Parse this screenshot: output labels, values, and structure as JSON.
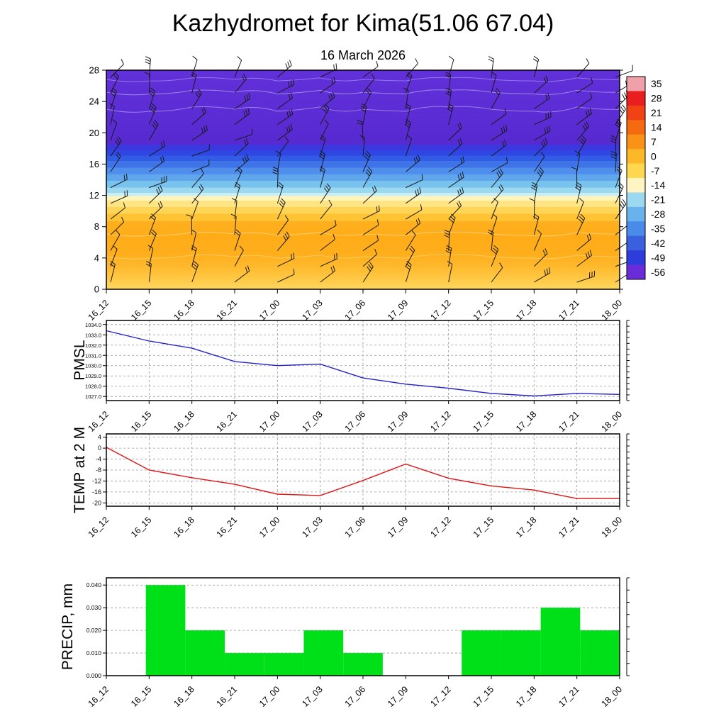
{
  "page": {
    "title": "Kazhydromet for Kima(51.06 67.04)",
    "subtitle": "16 March 2026"
  },
  "time_labels": [
    "16_12",
    "16_15",
    "16_18",
    "16_21",
    "17_00",
    "17_03",
    "17_06",
    "17_09",
    "17_12",
    "17_15",
    "17_18",
    "17_21",
    "18_00"
  ],
  "chart_data": [
    {
      "id": "upper_air",
      "type": "heatmap",
      "title": "",
      "description": "Vertical cross-section of temperature (shaded) with wind barbs at each 3-hour step; height index 0-28 on y-axis",
      "x": [
        "16_12",
        "16_15",
        "16_18",
        "16_21",
        "17_00",
        "17_03",
        "17_06",
        "17_09",
        "17_12",
        "17_15",
        "17_18",
        "17_21",
        "18_00"
      ],
      "ylim": [
        0,
        28
      ],
      "yticks": [
        0,
        4,
        8,
        12,
        16,
        20,
        24,
        28
      ],
      "colorbar_ticks": [
        "35",
        "28",
        "21",
        "14",
        "7",
        "0",
        "-7",
        "-14",
        "-21",
        "-28",
        "-35",
        "-42",
        "-49",
        "-56"
      ],
      "colorbar_colors": [
        "#f0a0a8",
        "#e81e20",
        "#f04214",
        "#f56a0e",
        "#fa9218",
        "#fcb826",
        "#ffd850",
        "#fff4c2",
        "#9cd8f0",
        "#6ab2ec",
        "#4a8ae8",
        "#3a60e0",
        "#2e3cdc",
        "#6a2cd8"
      ],
      "bands_note": "purple above level 18 (coldest ~ -56), banded blue/cyan levels 12-18, pale yellow ~11, yellow-orange below 11 (warmest ~0 near levels 5-9)",
      "gradient": [
        [
          0,
          "#6130d8"
        ],
        [
          20,
          "#5c2cd4"
        ],
        [
          34,
          "#562ad0"
        ],
        [
          34,
          "#3c38e0"
        ],
        [
          36.5,
          "#3c38e0"
        ],
        [
          36.5,
          "#2f46e3"
        ],
        [
          39,
          "#2f46e3"
        ],
        [
          39,
          "#335ce6"
        ],
        [
          41.5,
          "#335ce6"
        ],
        [
          41.5,
          "#3f74e9"
        ],
        [
          44.5,
          "#3f74e9"
        ],
        [
          44.5,
          "#4f8eec"
        ],
        [
          47.5,
          "#4f8eec"
        ],
        [
          47.5,
          "#60a6ec"
        ],
        [
          50.5,
          "#60a6ec"
        ],
        [
          50.5,
          "#78c2ee"
        ],
        [
          53.5,
          "#78c2ee"
        ],
        [
          53.5,
          "#9cd8f0"
        ],
        [
          56,
          "#9cd8f0"
        ],
        [
          56,
          "#c8eef6"
        ],
        [
          57.5,
          "#c8eef6"
        ],
        [
          57.5,
          "#fff4ba"
        ],
        [
          59.5,
          "#fff4ba"
        ],
        [
          59.5,
          "#ffe484"
        ],
        [
          62.5,
          "#ffe484"
        ],
        [
          62.5,
          "#ffd557"
        ],
        [
          65.5,
          "#ffd557"
        ],
        [
          65.5,
          "#ffc334"
        ],
        [
          69,
          "#ffc334"
        ],
        [
          69,
          "#ffb01f"
        ],
        [
          76,
          "#ffac18"
        ],
        [
          84,
          "#ffae1c"
        ],
        [
          90,
          "#ffba2e"
        ],
        [
          95,
          "#ffc844"
        ],
        [
          100,
          "#ffd65e"
        ]
      ],
      "wind_barbs": {
        "columns": 13,
        "rows": 14,
        "color": "#1a1a1a",
        "note": "mostly west-southwesterly barbs"
      }
    },
    {
      "id": "pmsl",
      "type": "line",
      "title": "PMSL",
      "color": "#2222cc",
      "x": [
        "16_12",
        "16_15",
        "16_18",
        "16_21",
        "17_00",
        "17_03",
        "17_06",
        "17_09",
        "17_12",
        "17_15",
        "17_18",
        "17_21",
        "18_00"
      ],
      "values": [
        1033.4,
        1032.4,
        1031.7,
        1030.4,
        1030.0,
        1030.15,
        1028.8,
        1028.2,
        1027.8,
        1027.3,
        1027.05,
        1027.3,
        1027.2
      ],
      "ylim": [
        1026.6,
        1034.4
      ],
      "yticks": [
        1034,
        1033,
        1032,
        1031,
        1030,
        1029,
        1028,
        1027
      ],
      "ytick_labels": [
        "1034.0",
        "1033.0",
        "1032.0",
        "1031.0",
        "1030.0",
        "1029.0",
        "1028.0",
        "1027.0"
      ],
      "grid": "dashed horizontal and vertical"
    },
    {
      "id": "temp2m",
      "type": "line",
      "title": "TEMP at 2 M",
      "color": "#dd1515",
      "x": [
        "16_12",
        "16_15",
        "16_18",
        "16_21",
        "17_00",
        "17_03",
        "17_06",
        "17_09",
        "17_12",
        "17_15",
        "17_18",
        "17_21",
        "18_00"
      ],
      "values": [
        0.3,
        -8.0,
        -10.8,
        -13.2,
        -16.8,
        -17.3,
        -11.8,
        -5.8,
        -11.0,
        -13.8,
        -15.3,
        -18.4,
        -18.4
      ],
      "ylim": [
        -21.2,
        5.2
      ],
      "yticks": [
        4,
        0,
        -4,
        -8,
        -12,
        -16,
        -20
      ],
      "ytick_labels": [
        "4",
        "0",
        "-4",
        "-8",
        "-12",
        "-16",
        "-20"
      ],
      "grid": "dashed horizontal and vertical"
    },
    {
      "id": "precip",
      "type": "bar",
      "title": "PRECIP, mm",
      "color": "#00e018",
      "x": [
        "16_12",
        "16_15",
        "16_18",
        "16_21",
        "17_00",
        "17_03",
        "17_06",
        "17_09",
        "17_12",
        "17_15",
        "17_18",
        "17_21",
        "18_00"
      ],
      "values": [
        0,
        0.04,
        0.02,
        0.01,
        0.01,
        0.02,
        0.01,
        0,
        0,
        0.02,
        0.02,
        0.03,
        0.02
      ],
      "ylim": [
        0,
        0.0432
      ],
      "yticks": [
        0.04,
        0.03,
        0.02,
        0.01,
        0
      ],
      "ytick_labels": [
        "0.040",
        "0.030",
        "0.020",
        "0.010",
        "0.000"
      ],
      "grid": "dashed horizontal"
    }
  ]
}
